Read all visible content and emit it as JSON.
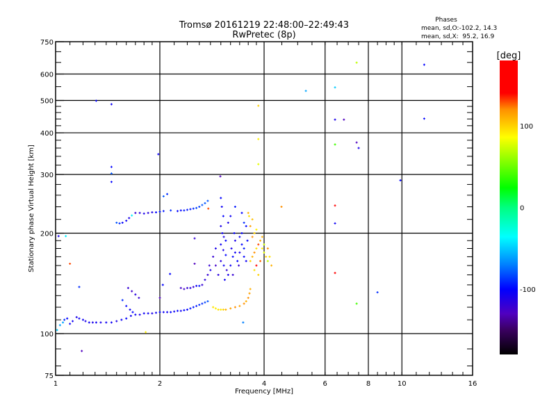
{
  "chart_data": {
    "type": "scatter",
    "title": "Tromsø 20161219 22:48:00–22:49:43",
    "subtitle": "RwPretec (8p)",
    "info": {
      "heading": "Phases",
      "line_o": "mean, sd,O:-102.2, 14.3",
      "line_x": "mean, sd,X:  95.2, 16.9"
    },
    "xlabel": "Frequency [MHz]",
    "ylabel": "Stationary phase Virtual Height [km]",
    "xscale": "log",
    "yscale": "log",
    "xlim": [
      1,
      16
    ],
    "ylim": [
      75,
      750
    ],
    "xticks": [
      1,
      2,
      4,
      6,
      8,
      10,
      16
    ],
    "xtick_labels": [
      "1",
      "2",
      "4",
      "6",
      "8",
      "10",
      "16"
    ],
    "xgrid": [
      2,
      4,
      6,
      8,
      10
    ],
    "yticks": [
      75,
      100,
      200,
      300,
      400,
      500,
      600,
      750
    ],
    "ytick_labels": [
      "75",
      "100",
      "200",
      "300",
      "400",
      "500",
      "600",
      "750"
    ],
    "ygrid": [
      100,
      200,
      300,
      400,
      500,
      600
    ],
    "colorbar": {
      "label": "[deg]",
      "range": [
        -180,
        180
      ],
      "ticks": [
        100,
        0,
        -100
      ],
      "tick_labels": [
        "100",
        "0",
        "-100"
      ],
      "stops": [
        [
          -180,
          "#000000"
        ],
        [
          -150,
          "#3a0060"
        ],
        [
          -130,
          "#5000c0"
        ],
        [
          -100,
          "#0000ff"
        ],
        [
          -70,
          "#0080ff"
        ],
        [
          -36,
          "#00ffff"
        ],
        [
          0,
          "#00ff80"
        ],
        [
          24,
          "#00ff00"
        ],
        [
          86,
          "#ffff00"
        ],
        [
          120,
          "#ff9000"
        ],
        [
          140,
          "#ff0000"
        ],
        [
          180,
          "#ff0000"
        ]
      ]
    },
    "points_format": [
      "frequency_MHz",
      "height_km",
      "phase_deg"
    ],
    "points": [
      [
        1.03,
        106,
        -60
      ],
      [
        1.05,
        108,
        -60
      ],
      [
        1.06,
        110,
        -90
      ],
      [
        1.08,
        111,
        -100
      ],
      [
        1.1,
        107,
        -105
      ],
      [
        1.12,
        109,
        -105
      ],
      [
        1.15,
        112,
        -110
      ],
      [
        1.17,
        111,
        -105
      ],
      [
        1.2,
        110,
        -105
      ],
      [
        1.22,
        109,
        -110
      ],
      [
        1.25,
        108,
        -105
      ],
      [
        1.28,
        108,
        -110
      ],
      [
        1.31,
        108,
        -105
      ],
      [
        1.35,
        108,
        -110
      ],
      [
        1.4,
        108,
        -105
      ],
      [
        1.45,
        108,
        -105
      ],
      [
        1.5,
        109,
        -110
      ],
      [
        1.55,
        110,
        -105
      ],
      [
        1.6,
        111,
        -100
      ],
      [
        1.65,
        113,
        -105
      ],
      [
        1.7,
        114,
        -105
      ],
      [
        1.75,
        114,
        -110
      ],
      [
        1.8,
        115,
        -105
      ],
      [
        1.85,
        115,
        -105
      ],
      [
        1.9,
        115,
        -110
      ],
      [
        1.95,
        115.5,
        -105
      ],
      [
        2.0,
        116,
        -100
      ],
      [
        2.05,
        116,
        -105
      ],
      [
        2.1,
        116,
        -105
      ],
      [
        2.15,
        116,
        -100
      ],
      [
        2.2,
        116.5,
        -105
      ],
      [
        2.25,
        117,
        -100
      ],
      [
        2.3,
        117,
        -105
      ],
      [
        2.35,
        117.5,
        -100
      ],
      [
        2.4,
        118,
        -100
      ],
      [
        2.45,
        119,
        -95
      ],
      [
        2.5,
        120,
        -95
      ],
      [
        2.55,
        121,
        -95
      ],
      [
        2.6,
        122,
        -90
      ],
      [
        2.65,
        123,
        -90
      ],
      [
        2.7,
        124,
        -85
      ],
      [
        2.75,
        125,
        -80
      ],
      [
        1.56,
        126,
        -90
      ],
      [
        1.6,
        121,
        -100
      ],
      [
        1.64,
        118,
        -105
      ],
      [
        1.67,
        116,
        -100
      ],
      [
        1.62,
        137,
        -120
      ],
      [
        1.66,
        134,
        -125
      ],
      [
        1.7,
        131,
        -115
      ],
      [
        1.74,
        128,
        -120
      ],
      [
        2.3,
        137,
        -125
      ],
      [
        2.35,
        136,
        -125
      ],
      [
        2.4,
        137,
        -120
      ],
      [
        2.45,
        137,
        -115
      ],
      [
        2.5,
        138,
        -120
      ],
      [
        2.55,
        139,
        -105
      ],
      [
        2.6,
        139,
        -95
      ],
      [
        2.0,
        128,
        -130
      ],
      [
        2.04,
        140,
        -100
      ],
      [
        2.65,
        140,
        -120
      ],
      [
        2.7,
        145,
        -115
      ],
      [
        2.75,
        150,
        -120
      ],
      [
        2.8,
        155,
        -110
      ],
      [
        2.78,
        160,
        -120
      ],
      [
        1.5,
        215,
        -80
      ],
      [
        1.53,
        214,
        -90
      ],
      [
        1.56,
        215,
        -100
      ],
      [
        1.6,
        218,
        -105
      ],
      [
        1.63,
        222,
        -110
      ],
      [
        1.66,
        226,
        -40
      ],
      [
        1.7,
        230,
        -120
      ],
      [
        1.75,
        230,
        -115
      ],
      [
        1.8,
        229,
        -110
      ],
      [
        1.85,
        230,
        -115
      ],
      [
        1.9,
        231,
        -110
      ],
      [
        1.95,
        231,
        -100
      ],
      [
        2.0,
        232,
        -95
      ],
      [
        2.05,
        233,
        -95
      ],
      [
        2.15,
        234,
        -90
      ],
      [
        2.25,
        233,
        -100
      ],
      [
        2.3,
        234,
        -100
      ],
      [
        2.35,
        234,
        -95
      ],
      [
        2.4,
        235,
        -95
      ],
      [
        2.45,
        236,
        -95
      ],
      [
        2.5,
        237,
        -90
      ],
      [
        2.55,
        238,
        -85
      ],
      [
        2.6,
        240,
        -85
      ],
      [
        2.65,
        243,
        -80
      ],
      [
        2.7,
        246,
        -80
      ],
      [
        2.75,
        250,
        -80
      ],
      [
        2.05,
        258,
        -80
      ],
      [
        2.1,
        262,
        -90
      ],
      [
        3.0,
        255,
        -100
      ],
      [
        3.02,
        240,
        -105
      ],
      [
        3.05,
        225,
        -100
      ],
      [
        3.0,
        210,
        -110
      ],
      [
        3.03,
        200,
        -105
      ],
      [
        3.06,
        195,
        -110
      ],
      [
        3.1,
        190,
        -100
      ],
      [
        3.0,
        185,
        -105
      ],
      [
        3.05,
        178,
        -110
      ],
      [
        3.1,
        172,
        -100
      ],
      [
        3.0,
        165,
        -115
      ],
      [
        3.06,
        160,
        -105
      ],
      [
        3.12,
        155,
        -120
      ],
      [
        3.15,
        150,
        -110
      ],
      [
        3.2,
        160,
        -105
      ],
      [
        3.25,
        170,
        -100
      ],
      [
        3.22,
        180,
        -110
      ],
      [
        3.3,
        175,
        -105
      ],
      [
        3.35,
        165,
        -100
      ],
      [
        3.3,
        190,
        -110
      ],
      [
        3.28,
        200,
        -100
      ],
      [
        3.4,
        195,
        -105
      ],
      [
        3.45,
        185,
        -100
      ],
      [
        3.4,
        175,
        -110
      ],
      [
        3.5,
        170,
        -100
      ],
      [
        3.55,
        165,
        -105
      ],
      [
        3.5,
        180,
        -95
      ],
      [
        3.45,
        200,
        -100
      ],
      [
        3.5,
        215,
        -90
      ],
      [
        3.55,
        210,
        -100
      ],
      [
        3.45,
        230,
        -100
      ],
      [
        3.3,
        240,
        -95
      ],
      [
        3.2,
        225,
        -105
      ],
      [
        3.15,
        215,
        -110
      ],
      [
        3.38,
        160,
        -120
      ],
      [
        3.58,
        190,
        -100
      ],
      [
        2.85,
        170,
        -120
      ],
      [
        2.9,
        160,
        -125
      ],
      [
        2.95,
        150,
        -115
      ],
      [
        2.9,
        180,
        -110
      ],
      [
        3.08,
        145,
        -105
      ],
      [
        3.25,
        150,
        -120
      ],
      [
        3.65,
        165,
        100
      ],
      [
        3.7,
        170,
        110
      ],
      [
        3.75,
        175,
        120
      ],
      [
        3.8,
        180,
        95
      ],
      [
        3.85,
        185,
        130
      ],
      [
        3.9,
        190,
        110
      ],
      [
        3.95,
        180,
        90
      ],
      [
        4.0,
        175,
        80
      ],
      [
        4.05,
        170,
        100
      ],
      [
        4.1,
        165,
        70
      ],
      [
        4.15,
        170,
        95
      ],
      [
        4.2,
        160,
        110
      ],
      [
        3.7,
        195,
        120
      ],
      [
        3.75,
        200,
        100
      ],
      [
        3.8,
        205,
        90
      ],
      [
        3.65,
        210,
        115
      ],
      [
        3.7,
        220,
        105
      ],
      [
        3.75,
        155,
        95
      ],
      [
        3.8,
        160,
        160
      ],
      [
        3.9,
        165,
        125
      ],
      [
        3.95,
        195,
        110
      ],
      [
        4.0,
        185,
        75
      ],
      [
        3.85,
        150,
        100
      ],
      [
        3.6,
        230,
        110
      ],
      [
        3.62,
        225,
        95
      ],
      [
        4.1,
        180,
        120
      ],
      [
        2.85,
        120,
        95
      ],
      [
        2.9,
        119,
        90
      ],
      [
        2.95,
        118,
        95
      ],
      [
        3.0,
        118,
        92
      ],
      [
        3.05,
        118,
        100
      ],
      [
        3.1,
        118,
        110
      ],
      [
        3.2,
        119,
        115
      ],
      [
        3.3,
        120,
        120
      ],
      [
        3.4,
        121,
        115
      ],
      [
        3.5,
        123,
        120
      ],
      [
        3.55,
        125,
        110
      ],
      [
        3.6,
        128,
        120
      ],
      [
        3.63,
        132,
        115
      ],
      [
        3.65,
        136,
        110
      ],
      [
        1.31,
        499,
        -100
      ],
      [
        1.45,
        487,
        -105
      ],
      [
        1.45,
        316,
        -100
      ],
      [
        1.45,
        302,
        -80
      ],
      [
        1.45,
        285,
        -100
      ],
      [
        1.98,
        345,
        -105
      ],
      [
        5.28,
        534,
        -60
      ],
      [
        6.41,
        547,
        -50
      ],
      [
        7.4,
        649,
        70
      ],
      [
        11.6,
        640,
        -100
      ],
      [
        6.41,
        438,
        -110
      ],
      [
        6.8,
        438,
        -130
      ],
      [
        11.6,
        441,
        -100
      ],
      [
        6.41,
        369,
        40
      ],
      [
        7.4,
        374,
        -130
      ],
      [
        7.5,
        360,
        -110
      ],
      [
        3.85,
        383,
        90
      ],
      [
        3.85,
        482,
        100
      ],
      [
        3.85,
        322,
        80
      ],
      [
        6.41,
        242,
        160
      ],
      [
        6.41,
        214,
        -105
      ],
      [
        6.41,
        152,
        160
      ],
      [
        7.4,
        123,
        40
      ],
      [
        8.5,
        133,
        -90
      ],
      [
        4.49,
        240,
        120
      ],
      [
        9.9,
        288,
        -100
      ],
      [
        1.19,
        88.7,
        -130
      ],
      [
        1.82,
        101,
        90
      ],
      [
        1.1,
        162,
        130
      ],
      [
        1.02,
        196,
        -110
      ],
      [
        1.07,
        196,
        -40
      ],
      [
        1.01,
        102.5,
        -50
      ],
      [
        1.17,
        138,
        -90
      ],
      [
        2.99,
        296,
        -130
      ],
      [
        2.14,
        151,
        -100
      ],
      [
        2.52,
        193,
        -120
      ],
      [
        2.52,
        162,
        -130
      ],
      [
        3.48,
        108,
        -70
      ],
      [
        2.76,
        237,
        130
      ]
    ]
  }
}
